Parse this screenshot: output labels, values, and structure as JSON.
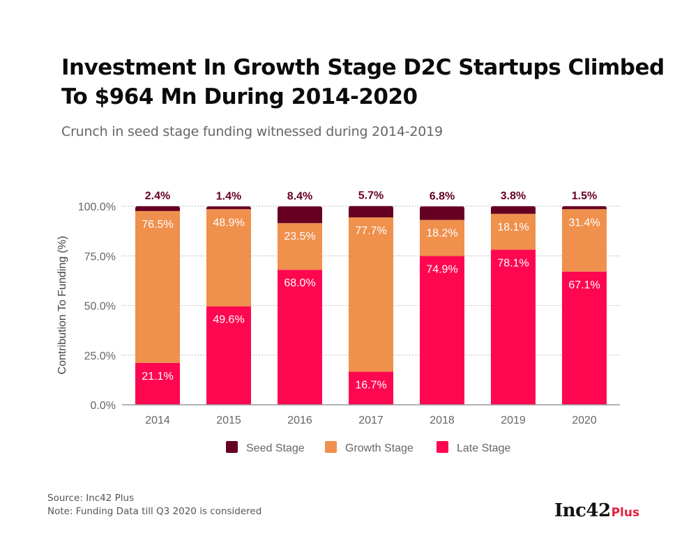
{
  "header": {
    "title": "Investment In Growth Stage D2C Startups Climbed To $964 Mn During 2014-2020",
    "subtitle": "Crunch in seed stage funding witnessed during 2014-2019"
  },
  "footer": {
    "source": "Source: Inc42 Plus",
    "note": "Note: Funding Data till Q3 2020 is considered"
  },
  "logo": {
    "main": "Inc42",
    "suffix": "Plus"
  },
  "chart_data": {
    "type": "bar",
    "stacked": true,
    "title": "Investment In Growth Stage D2C Startups Climbed To $964 Mn During 2014-2020",
    "subtitle": "Crunch in seed stage funding witnessed during 2014-2019",
    "xlabel": "",
    "ylabel": "Contribution To Funding (%)",
    "ylim": [
      0,
      100
    ],
    "yticks": [
      "0.0%",
      "25.0%",
      "50.0%",
      "75.0%",
      "100.0%"
    ],
    "grid": true,
    "legend_position": "bottom",
    "categories": [
      "2014",
      "2015",
      "2016",
      "2017",
      "2018",
      "2019",
      "2020"
    ],
    "series": [
      {
        "name": "Late Stage",
        "color": "#ff0650",
        "values": [
          21.1,
          49.6,
          68.0,
          16.7,
          74.9,
          78.1,
          67.1
        ],
        "labels": [
          "21.1%",
          "49.6%",
          "68.0%",
          "16.7%",
          "74.9%",
          "78.1%",
          "67.1%"
        ]
      },
      {
        "name": "Growth Stage",
        "color": "#ef904d",
        "values": [
          76.5,
          48.9,
          23.5,
          77.7,
          18.2,
          18.1,
          31.4
        ],
        "labels": [
          "76.5%",
          "48.9%",
          "23.5%",
          "77.7%",
          "18.2%",
          "18.1%",
          "31.4%"
        ]
      },
      {
        "name": "Seed Stage",
        "color": "#660022",
        "values": [
          2.4,
          1.4,
          8.4,
          5.7,
          6.8,
          3.8,
          1.5
        ],
        "labels": [
          "2.4%",
          "1.4%",
          "8.4%",
          "5.7%",
          "6.8%",
          "3.8%",
          "1.5%"
        ]
      }
    ],
    "legend": [
      "Seed Stage",
      "Growth Stage",
      "Late Stage"
    ]
  }
}
